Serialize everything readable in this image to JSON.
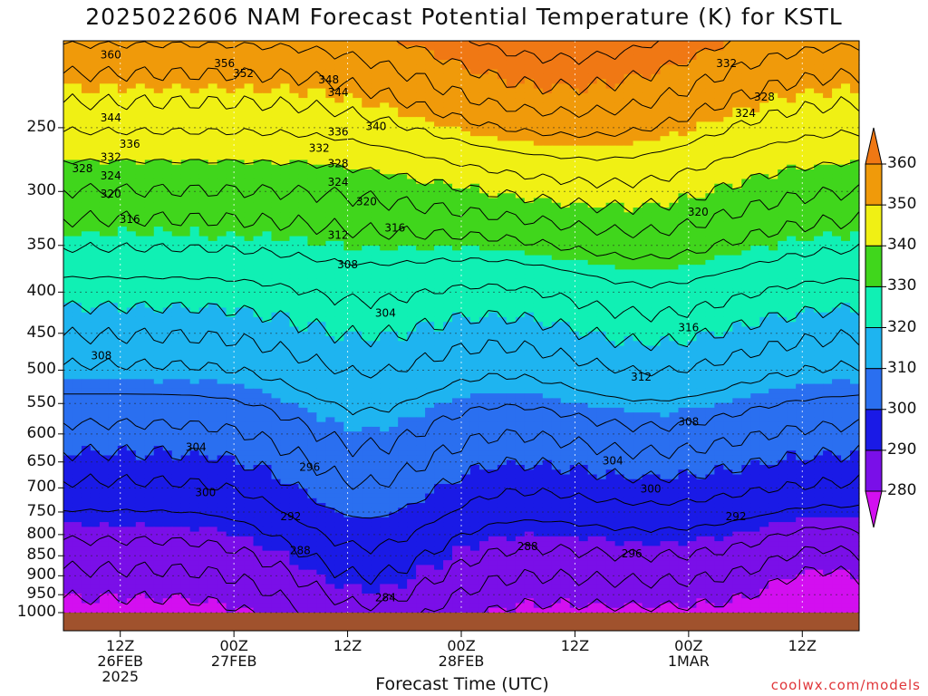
{
  "chart_data": {
    "type": "heatmap",
    "title": "2025022606 NAM Forecast Potential Temperature (K) for KSTL",
    "xlabel": "Forecast Time (UTC)",
    "credit": "coolwx.com/models",
    "y_ticks": [
      "250",
      "300",
      "350",
      "400",
      "450",
      "500",
      "550",
      "600",
      "650",
      "700",
      "750",
      "800",
      "850",
      "900",
      "950",
      "1000"
    ],
    "y_values": [
      250,
      300,
      350,
      400,
      450,
      500,
      550,
      600,
      650,
      700,
      750,
      800,
      850,
      900,
      950,
      1000
    ],
    "y_scale": "log",
    "ylim": [
      195,
      1000
    ],
    "x_ticks": [
      {
        "hour": 6,
        "lines": [
          "12Z",
          "26FEB",
          "2025"
        ]
      },
      {
        "hour": 18,
        "lines": [
          "00Z",
          "27FEB"
        ]
      },
      {
        "hour": 30,
        "lines": [
          "12Z"
        ]
      },
      {
        "hour": 42,
        "lines": [
          "00Z",
          "28FEB"
        ]
      },
      {
        "hour": 54,
        "lines": [
          "12Z"
        ]
      },
      {
        "hour": 66,
        "lines": [
          "00Z",
          "1MAR"
        ]
      },
      {
        "hour": 78,
        "lines": [
          "12Z"
        ]
      }
    ],
    "xlim": [
      0,
      84
    ],
    "colorbar": {
      "levels": [
        280,
        290,
        300,
        310,
        320,
        330,
        340,
        350,
        360
      ],
      "labels": [
        "280",
        "290",
        "300",
        "310",
        "320",
        "330",
        "340",
        "350",
        "360"
      ],
      "colors": [
        "#d30ff0",
        "#7a0fe8",
        "#1a1ae6",
        "#2a6ff0",
        "#1eb4f0",
        "#10f0b4",
        "#40d61c",
        "#f0f014",
        "#f09a0a",
        "#f07814"
      ]
    },
    "contour_interval": 4,
    "contour_labels": [
      {
        "hour": 5,
        "p": 203,
        "text": "360"
      },
      {
        "hour": 17,
        "p": 208,
        "text": "356"
      },
      {
        "hour": 19,
        "p": 214,
        "text": "352"
      },
      {
        "hour": 28,
        "p": 218,
        "text": "348"
      },
      {
        "hour": 29,
        "p": 226,
        "text": "344"
      },
      {
        "hour": 5,
        "p": 243,
        "text": "344"
      },
      {
        "hour": 7,
        "p": 262,
        "text": "336"
      },
      {
        "hour": 29,
        "p": 253,
        "text": "336"
      },
      {
        "hour": 33,
        "p": 249,
        "text": "340"
      },
      {
        "hour": 27,
        "p": 265,
        "text": "332"
      },
      {
        "hour": 5,
        "p": 272,
        "text": "332"
      },
      {
        "hour": 2,
        "p": 281,
        "text": "328"
      },
      {
        "hour": 29,
        "p": 277,
        "text": "328"
      },
      {
        "hour": 5,
        "p": 287,
        "text": "324"
      },
      {
        "hour": 29,
        "p": 292,
        "text": "324"
      },
      {
        "hour": 5,
        "p": 302,
        "text": "320"
      },
      {
        "hour": 32,
        "p": 309,
        "text": "320"
      },
      {
        "hour": 7,
        "p": 325,
        "text": "316"
      },
      {
        "hour": 35,
        "p": 333,
        "text": "316"
      },
      {
        "hour": 29,
        "p": 340,
        "text": "312"
      },
      {
        "hour": 30,
        "p": 370,
        "text": "308"
      },
      {
        "hour": 34,
        "p": 425,
        "text": "304"
      },
      {
        "hour": 4,
        "p": 480,
        "text": "308"
      },
      {
        "hour": 14,
        "p": 623,
        "text": "304"
      },
      {
        "hour": 15,
        "p": 709,
        "text": "300"
      },
      {
        "hour": 26,
        "p": 660,
        "text": "296"
      },
      {
        "hour": 24,
        "p": 760,
        "text": "292"
      },
      {
        "hour": 25,
        "p": 837,
        "text": "288"
      },
      {
        "hour": 49,
        "p": 828,
        "text": "288"
      },
      {
        "hour": 34,
        "p": 958,
        "text": "284"
      },
      {
        "hour": 62,
        "p": 702,
        "text": "300"
      },
      {
        "hour": 60,
        "p": 845,
        "text": "296"
      },
      {
        "hour": 71,
        "p": 760,
        "text": "292"
      },
      {
        "hour": 66,
        "p": 580,
        "text": "308"
      },
      {
        "hour": 61,
        "p": 510,
        "text": "312"
      },
      {
        "hour": 66,
        "p": 443,
        "text": "316"
      },
      {
        "hour": 67,
        "p": 318,
        "text": "320"
      },
      {
        "hour": 70,
        "p": 208,
        "text": "332"
      },
      {
        "hour": 74,
        "p": 229,
        "text": "328"
      },
      {
        "hour": 72,
        "p": 240,
        "text": "324"
      },
      {
        "hour": 58,
        "p": 648,
        "text": "304"
      }
    ]
  }
}
